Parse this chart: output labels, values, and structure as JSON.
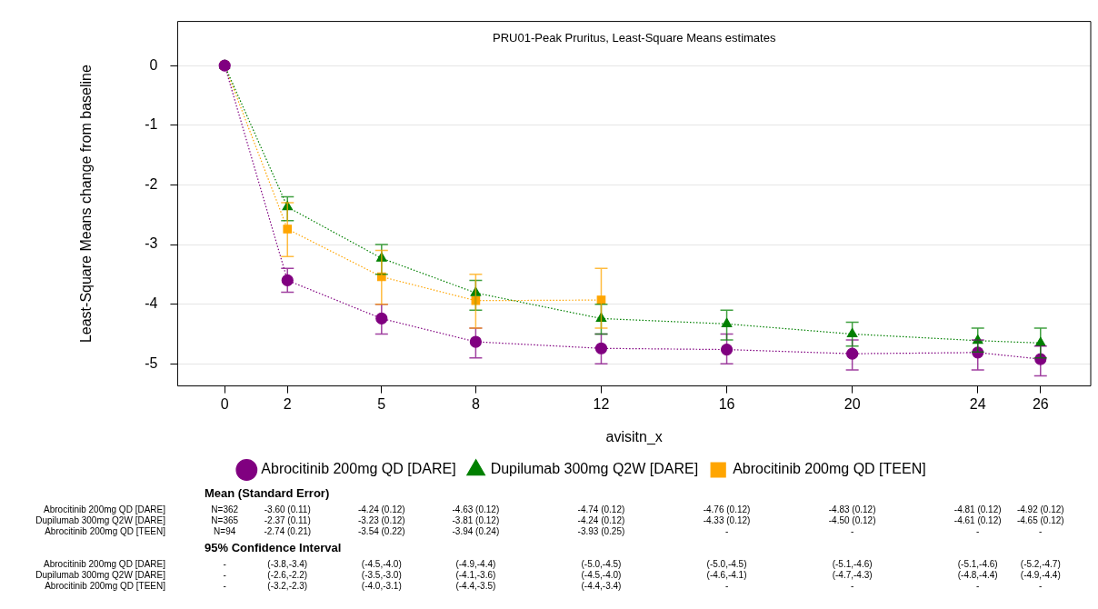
{
  "chart_data": [
    {
      "type": "line",
      "title": "PRU01-Peak Pruritus, Least-Square Means estimates",
      "xlabel": "avisitn_x",
      "ylabel": "Least-Square Means change from baseline",
      "x": [
        0,
        2,
        5,
        8,
        12,
        16,
        20,
        24,
        26
      ],
      "xlim": [
        -1.5,
        27.6
      ],
      "xticks": [
        0,
        2,
        5,
        8,
        12,
        16,
        20,
        24,
        26
      ],
      "ylim": [
        -5.37,
        0.74
      ],
      "yticks": [
        -5,
        -4,
        -3,
        -2,
        -1,
        0
      ],
      "grid": "y",
      "legend": "bottom",
      "line_style": "dotted",
      "series": [
        {
          "name": "Abrocitinib 200mg QD [DARE]",
          "color": "#800080",
          "marker": "circle",
          "values": [
            0,
            -3.6,
            -4.24,
            -4.63,
            -4.74,
            -4.76,
            -4.83,
            -4.81,
            -4.92
          ],
          "errors": [
            null,
            [
              -3.8,
              -3.4
            ],
            [
              -4.5,
              -4.0
            ],
            [
              -4.9,
              -4.4
            ],
            [
              -5.0,
              -4.5
            ],
            [
              -5.0,
              -4.5
            ],
            [
              -5.1,
              -4.6
            ],
            [
              -5.1,
              -4.6
            ],
            [
              -5.2,
              -4.7
            ]
          ]
        },
        {
          "name": "Dupilumab 300mg Q2W [DARE]",
          "color": "#008000",
          "marker": "triangle",
          "values": [
            0,
            -2.37,
            -3.23,
            -3.81,
            -4.24,
            -4.33,
            -4.5,
            -4.61,
            -4.65
          ],
          "errors": [
            null,
            [
              -2.6,
              -2.2
            ],
            [
              -3.5,
              -3.0
            ],
            [
              -4.1,
              -3.6
            ],
            [
              -4.5,
              -4.0
            ],
            [
              -4.6,
              -4.1
            ],
            [
              -4.7,
              -4.3
            ],
            [
              -4.8,
              -4.4
            ],
            [
              -4.9,
              -4.4
            ]
          ]
        },
        {
          "name": "Abrocitinib 200mg QD [TEEN]",
          "color": "#ffa500",
          "marker": "square",
          "values": [
            0,
            -2.74,
            -3.54,
            -3.94,
            -3.93,
            null,
            null,
            null,
            null
          ],
          "errors": [
            null,
            [
              -3.2,
              -2.3
            ],
            [
              -4.0,
              -3.1
            ],
            [
              -4.4,
              -3.5
            ],
            [
              -4.4,
              -3.4
            ],
            null,
            null,
            null,
            null
          ]
        }
      ]
    },
    {
      "type": "other",
      "annotations": [
        "Mean (Standard Error)",
        "Abrocitinib 200mg QD [DARE]",
        "N=362",
        "-3.60 (0.11)",
        "-4.24 (0.12)",
        "-4.63 (0.12)",
        "-4.74 (0.12)",
        "-4.76 (0.12)",
        "-4.83 (0.12)",
        "-4.81 (0.12)",
        "-4.92 (0.12)",
        "Dupilumab 300mg Q2W [DARE]",
        "N=365",
        "-2.37 (0.11)",
        "-3.23 (0.12)",
        "-3.81 (0.12)",
        "-4.24 (0.12)",
        "-4.33 (0.12)",
        "-4.50 (0.12)",
        "-4.61 (0.12)",
        "-4.65 (0.12)",
        "Abrocitinib 200mg QD [TEEN]",
        "N=94",
        "-2.74 (0.21)",
        "-3.54 (0.22)",
        "-3.94 (0.24)",
        "-3.93 (0.25)",
        "-",
        "-",
        "-",
        "-",
        "95% Confidence Interval",
        "Abrocitinib 200mg QD [DARE]",
        "-",
        "(-3.8,-3.4)",
        "(-4.5,-4.0)",
        "(-4.9,-4.4)",
        "(-5.0,-4.5)",
        "(-5.0,-4.5)",
        "(-5.1,-4.6)",
        "(-5.1,-4.6)",
        "(-5.2,-4.7)",
        "Dupilumab 300mg Q2W [DARE]",
        "-",
        "(-2.6,-2.2)",
        "(-3.5,-3.0)",
        "(-4.1,-3.6)",
        "(-4.5,-4.0)",
        "(-4.6,-4.1)",
        "(-4.7,-4.3)",
        "(-4.8,-4.4)",
        "(-4.9,-4.4)",
        "Abrocitinib 200mg QD [TEEN]",
        "-",
        "(-3.2,-2.3)",
        "(-4.0,-3.1)",
        "(-4.4,-3.5)",
        "(-4.4,-3.4)",
        "-",
        "-",
        "-",
        "-"
      ]
    }
  ]
}
